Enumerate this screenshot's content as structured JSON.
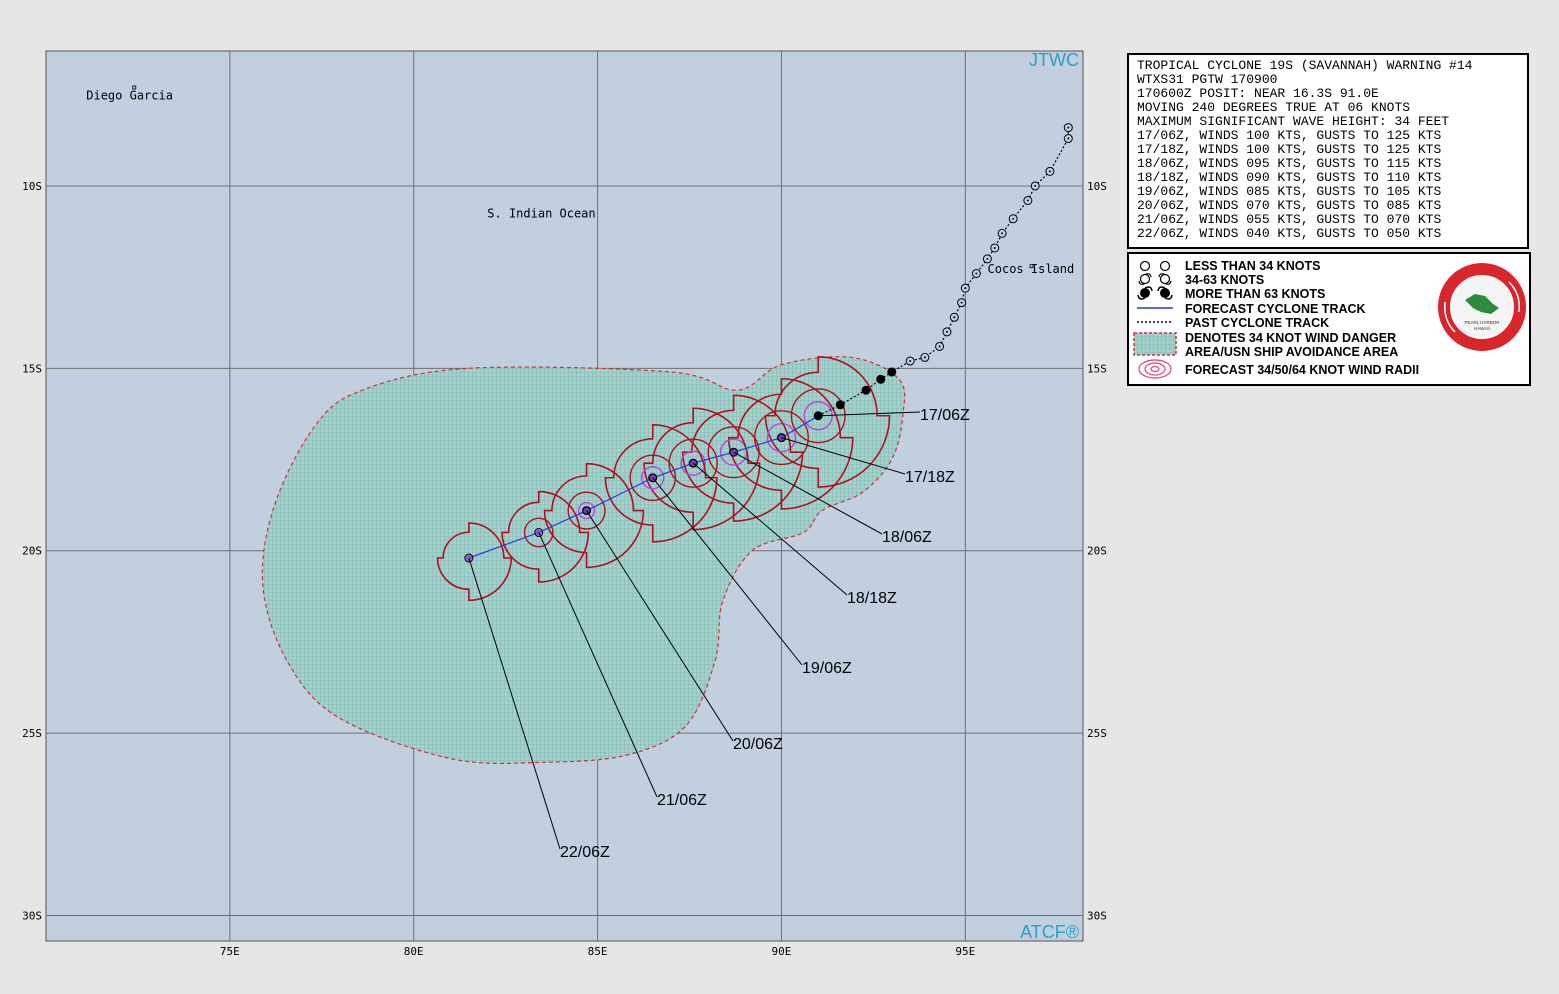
{
  "map": {
    "org_top": "JTWC",
    "org_bottom": "ATCF®",
    "colors": {
      "ocean": "#c1cfdf",
      "danger_fill": "#9bcdc7",
      "danger_edge": "#d43030",
      "wind_radii": "#b0101c",
      "forecast_track": "#2a3ad8",
      "grid": "#707070"
    },
    "lon_labels": [
      "75E",
      "80E",
      "85E",
      "90E",
      "95E"
    ],
    "lat_labels": [
      "10S",
      "15S",
      "20S",
      "25S",
      "30S"
    ],
    "places": [
      {
        "name": "Diego Garcia",
        "lon": 72.4,
        "lat": 7.3
      },
      {
        "name": "S. Indian Ocean",
        "lon": 82.0,
        "lat": 10.7
      },
      {
        "name": "Cocos Island",
        "lon": 96.8,
        "lat": 12.2
      }
    ],
    "forecast_labels": [
      "17/06Z",
      "17/18Z",
      "18/06Z",
      "18/18Z",
      "19/06Z",
      "20/06Z",
      "21/06Z",
      "22/06Z"
    ]
  },
  "warning": {
    "lines": [
      "TROPICAL CYCLONE 19S (SAVANNAH) WARNING #14",
      "WTXS31 PGTW 170900",
      "170600Z POSIT: NEAR 16.3S 91.0E",
      "MOVING 240 DEGREES TRUE AT 06 KNOTS",
      "MAXIMUM SIGNIFICANT WAVE HEIGHT: 34 FEET",
      "17/06Z, WINDS 100 KTS, GUSTS TO 125 KTS",
      "17/18Z, WINDS 100 KTS, GUSTS TO 125 KTS",
      "18/06Z, WINDS 095 KTS, GUSTS TO 115 KTS",
      "18/18Z, WINDS 090 KTS, GUSTS TO 110 KTS",
      "19/06Z, WINDS 085 KTS, GUSTS TO 105 KTS",
      "20/06Z, WINDS 070 KTS, GUSTS TO 085 KTS",
      "21/06Z, WINDS 055 KTS, GUSTS TO 070 KTS",
      "22/06Z, WINDS 040 KTS, GUSTS TO 050 KTS"
    ]
  },
  "legend": {
    "items": [
      "LESS THAN 34 KNOTS",
      "34-63 KNOTS",
      "MORE THAN 63 KNOTS",
      "FORECAST CYCLONE TRACK",
      "PAST CYCLONE TRACK",
      "DENOTES 34 KNOT WIND DANGER",
      "AREA/USN SHIP AVOIDANCE AREA",
      "FORECAST 34/50/64 KNOT WIND RADII"
    ],
    "seal_text": "JOINT TYPHOON WARNING CENTER",
    "seal_subtext": "PEARL HARBOR, HAWAII"
  },
  "chart_data": {
    "type": "map",
    "lon_range": [
      70,
      98.2
    ],
    "lat_range": [
      6.3,
      30.7
    ],
    "forecast_track": [
      {
        "time": "17/06Z",
        "lon": 91.0,
        "lat": 16.3,
        "winds_kt": 100,
        "gusts_kt": 125
      },
      {
        "time": "17/18Z",
        "lon": 90.0,
        "lat": 16.9,
        "winds_kt": 100,
        "gusts_kt": 125
      },
      {
        "time": "18/06Z",
        "lon": 88.7,
        "lat": 17.3,
        "winds_kt": 95,
        "gusts_kt": 115
      },
      {
        "time": "18/18Z",
        "lon": 87.6,
        "lat": 17.6,
        "winds_kt": 90,
        "gusts_kt": 110
      },
      {
        "time": "19/06Z",
        "lon": 86.5,
        "lat": 18.0,
        "winds_kt": 85,
        "gusts_kt": 105
      },
      {
        "time": "20/06Z",
        "lon": 84.7,
        "lat": 18.9,
        "winds_kt": 70,
        "gusts_kt": 85
      },
      {
        "time": "21/06Z",
        "lon": 83.4,
        "lat": 19.5,
        "winds_kt": 55,
        "gusts_kt": 70
      },
      {
        "time": "22/06Z",
        "lon": 81.5,
        "lat": 20.2,
        "winds_kt": 40,
        "gusts_kt": 50
      }
    ],
    "past_track": [
      {
        "lon": 97.8,
        "lat": 8.4,
        "cat": "lt34"
      },
      {
        "lon": 97.8,
        "lat": 8.7,
        "cat": "lt34"
      },
      {
        "lon": 97.3,
        "lat": 9.6,
        "cat": "lt34"
      },
      {
        "lon": 96.9,
        "lat": 10.0,
        "cat": "lt34"
      },
      {
        "lon": 96.7,
        "lat": 10.4,
        "cat": "lt34"
      },
      {
        "lon": 96.3,
        "lat": 10.9,
        "cat": "lt34"
      },
      {
        "lon": 96.0,
        "lat": 11.3,
        "cat": "lt34"
      },
      {
        "lon": 95.8,
        "lat": 11.7,
        "cat": "lt34"
      },
      {
        "lon": 95.6,
        "lat": 12.0,
        "cat": "lt34"
      },
      {
        "lon": 95.3,
        "lat": 12.4,
        "cat": "34_63"
      },
      {
        "lon": 95.0,
        "lat": 12.8,
        "cat": "34_63"
      },
      {
        "lon": 94.9,
        "lat": 13.2,
        "cat": "34_63"
      },
      {
        "lon": 94.7,
        "lat": 13.6,
        "cat": "34_63"
      },
      {
        "lon": 94.5,
        "lat": 14.0,
        "cat": "34_63"
      },
      {
        "lon": 94.3,
        "lat": 14.4,
        "cat": "34_63"
      },
      {
        "lon": 93.9,
        "lat": 14.7,
        "cat": "34_63"
      },
      {
        "lon": 93.5,
        "lat": 14.8,
        "cat": "34_63"
      },
      {
        "lon": 93.0,
        "lat": 15.1,
        "cat": "gt63"
      },
      {
        "lon": 92.7,
        "lat": 15.3,
        "cat": "gt63"
      },
      {
        "lon": 92.3,
        "lat": 15.6,
        "cat": "gt63"
      },
      {
        "lon": 91.6,
        "lat": 16.0,
        "cat": "gt63"
      }
    ],
    "danger_area": [
      [
        81.5,
        15.0
      ],
      [
        87.0,
        15.1
      ],
      [
        88.8,
        15.6
      ],
      [
        90.0,
        14.9
      ],
      [
        91.9,
        14.7
      ],
      [
        93.2,
        15.3
      ],
      [
        93.3,
        16.3
      ],
      [
        93.0,
        17.5
      ],
      [
        92.2,
        18.4
      ],
      [
        91.1,
        18.9
      ],
      [
        90.6,
        19.5
      ],
      [
        89.2,
        20.0
      ],
      [
        88.4,
        21.4
      ],
      [
        88.2,
        23.0
      ],
      [
        87.4,
        24.8
      ],
      [
        85.8,
        25.6
      ],
      [
        83.5,
        25.8
      ],
      [
        81.0,
        25.7
      ],
      [
        78.0,
        24.6
      ],
      [
        76.6,
        23.1
      ],
      [
        75.9,
        21.0
      ],
      [
        76.2,
        18.8
      ],
      [
        77.3,
        16.6
      ],
      [
        78.6,
        15.6
      ]
    ]
  }
}
